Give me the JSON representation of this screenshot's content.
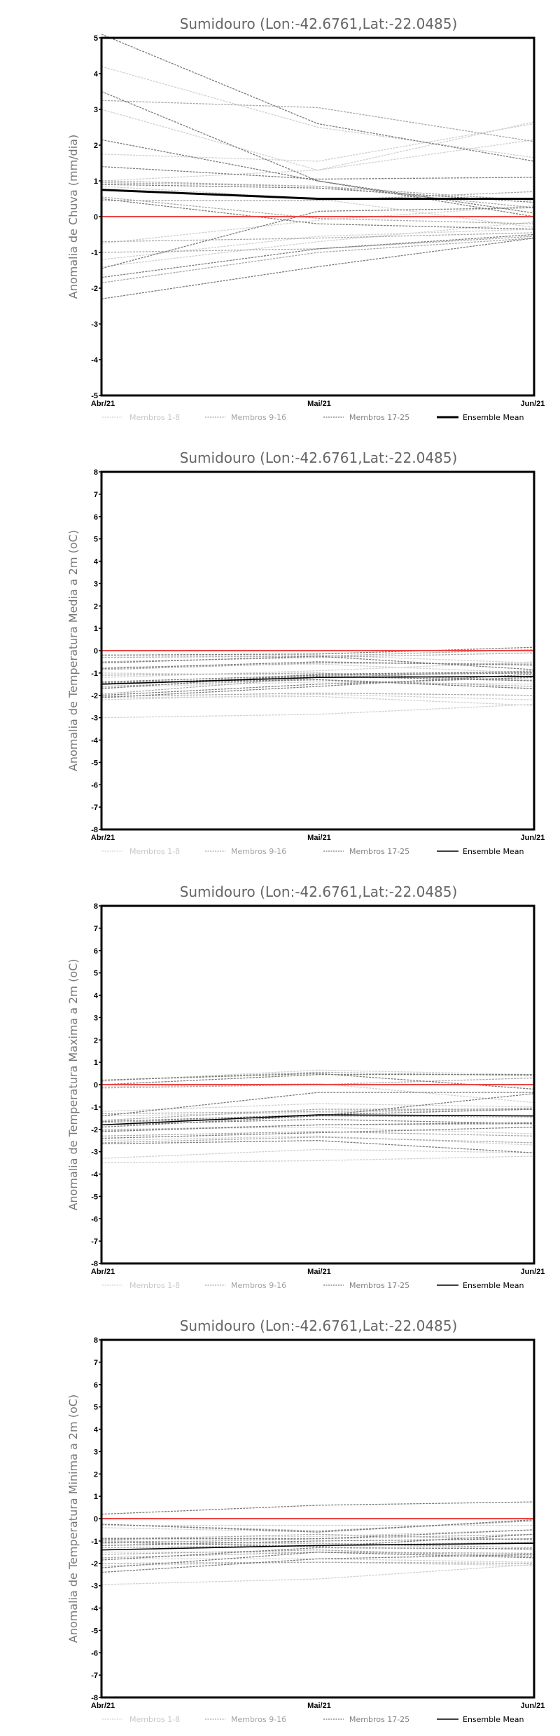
{
  "colors": {
    "members_1_8": "#cfcfcf",
    "members_9_16": "#a8a8a8",
    "members_17_25": "#7a7a7a",
    "mean": "#000000",
    "zero_line": "#ee4444"
  },
  "legend": [
    "Membros 1-8",
    "Membros 9-16",
    "Membros 17-25",
    "Ensemble Mean"
  ],
  "chart_data": [
    {
      "type": "line",
      "title": "Sumidouro (Lon:-42.6761,Lat:-22.0485)",
      "ylabel": "Anomalia de Chuva (mm/dia)",
      "xlabel": "",
      "categories": [
        "Abr/21",
        "Mai/21",
        "Jun/21"
      ],
      "ylim": [
        -5,
        5
      ],
      "yticks": [
        "-5",
        "-4",
        "-3",
        "-2",
        "-1",
        "0",
        "1",
        "2",
        "3",
        "4",
        "5"
      ],
      "reference_line": 0,
      "members": [
        [
          4.2,
          2.5,
          1.65
        ],
        [
          3.0,
          1.3,
          2.65
        ],
        [
          1.75,
          1.55,
          2.6
        ],
        [
          1.0,
          1.3,
          2.15
        ],
        [
          0.85,
          0.5,
          -0.3
        ],
        [
          -0.75,
          -0.1,
          0.3
        ],
        [
          -1.2,
          -0.55,
          -0.35
        ],
        [
          -1.4,
          -0.7,
          -0.15
        ],
        [
          3.25,
          3.05,
          2.1
        ],
        [
          0.95,
          0.85,
          0.25
        ],
        [
          0.45,
          0.45,
          0.7
        ],
        [
          -0.7,
          -0.6,
          -0.45
        ],
        [
          -1.0,
          -0.9,
          -0.55
        ],
        [
          0.55,
          -0.05,
          -0.2
        ],
        [
          1.0,
          0.85,
          0.45
        ],
        [
          -1.85,
          -1.0,
          -0.6
        ],
        [
          5.1,
          2.6,
          1.55
        ],
        [
          3.5,
          1.0,
          0.0
        ],
        [
          2.15,
          1.0,
          0.1
        ],
        [
          1.4,
          1.05,
          1.1
        ],
        [
          0.9,
          0.8,
          0.4
        ],
        [
          0.5,
          -0.2,
          -0.35
        ],
        [
          -1.45,
          0.15,
          0.25
        ],
        [
          -1.7,
          -0.9,
          -0.5
        ],
        [
          -2.3,
          -1.4,
          -0.6
        ]
      ],
      "ensemble_mean": [
        0.75,
        0.5,
        0.5
      ]
    },
    {
      "type": "line",
      "title": "Sumidouro (Lon:-42.6761,Lat:-22.0485)",
      "ylabel": "Anomalia de Temperatura Media a 2m (oC)",
      "xlabel": "",
      "categories": [
        "Abr/21",
        "Mai/21",
        "Jun/21"
      ],
      "ylim": [
        -8,
        8
      ],
      "yticks": [
        "-8",
        "-7",
        "-6",
        "-5",
        "-4",
        "-3",
        "-2",
        "-1",
        "0",
        "1",
        "2",
        "3",
        "4",
        "5",
        "6",
        "7",
        "8"
      ],
      "reference_line": 0,
      "members": [
        [
          -3.0,
          -2.85,
          -2.4
        ],
        [
          -2.2,
          -1.95,
          -2.2
        ],
        [
          -1.2,
          -0.9,
          -0.5
        ],
        [
          -0.75,
          -0.6,
          -1.0
        ],
        [
          -2.1,
          -2.05,
          -2.45
        ],
        [
          -1.0,
          -1.1,
          -1.3
        ],
        [
          -1.65,
          -1.4,
          -1.5
        ],
        [
          -0.2,
          -0.2,
          -0.55
        ],
        [
          -1.4,
          -1.3,
          -1.6
        ],
        [
          -0.5,
          -0.3,
          -0.1
        ],
        [
          -2.05,
          -1.9,
          -2.0
        ],
        [
          -1.1,
          -1.0,
          -1.35
        ],
        [
          -0.85,
          -0.55,
          -0.6
        ],
        [
          -1.6,
          -1.3,
          -1.7
        ],
        [
          -1.95,
          -1.2,
          -0.9
        ],
        [
          -0.3,
          -0.25,
          0.05
        ],
        [
          -0.2,
          -0.15,
          0.15
        ],
        [
          -0.55,
          -0.25,
          -0.85
        ],
        [
          -0.8,
          -0.5,
          -0.65
        ],
        [
          -1.4,
          -1.1,
          -1.0
        ],
        [
          -1.5,
          -1.15,
          -1.35
        ],
        [
          -2.0,
          -1.5,
          -1.2
        ],
        [
          -2.1,
          -1.6,
          -1.05
        ],
        [
          -1.45,
          -1.3,
          -1.7
        ],
        [
          -1.7,
          -1.05,
          -0.95
        ]
      ],
      "ensemble_mean": [
        -1.5,
        -1.2,
        -1.15
      ]
    },
    {
      "type": "line",
      "title": "Sumidouro (Lon:-42.6761,Lat:-22.0485)",
      "ylabel": "Anomalia de Temperatura Maxima a 2m (oC)",
      "xlabel": "",
      "categories": [
        "Abr/21",
        "Mai/21",
        "Jun/21"
      ],
      "ylim": [
        -8,
        8
      ],
      "yticks": [
        "-8",
        "-7",
        "-6",
        "-5",
        "-4",
        "-3",
        "-2",
        "-1",
        "0",
        "1",
        "2",
        "3",
        "4",
        "5",
        "6",
        "7",
        "8"
      ],
      "reference_line": 0,
      "members": [
        [
          -3.5,
          -3.4,
          -3.2
        ],
        [
          -3.3,
          -2.9,
          -3.05
        ],
        [
          -1.2,
          -0.85,
          -1.0
        ],
        [
          0.15,
          0.65,
          0.45
        ],
        [
          -2.0,
          -1.9,
          -2.2
        ],
        [
          -1.4,
          -1.25,
          -1.1
        ],
        [
          -2.5,
          -2.3,
          -2.7
        ],
        [
          -0.1,
          0.05,
          -0.8
        ],
        [
          0.2,
          0.55,
          0.4
        ],
        [
          -1.6,
          -1.1,
          -1.1
        ],
        [
          -2.3,
          -2.1,
          -2.3
        ],
        [
          -1.7,
          -1.4,
          -1.45
        ],
        [
          -2.6,
          -2.35,
          -2.6
        ],
        [
          -1.3,
          -1.2,
          -1.05
        ],
        [
          -0.15,
          0.0,
          0.3
        ],
        [
          -2.05,
          -1.8,
          -1.75
        ],
        [
          0.2,
          0.5,
          -0.2
        ],
        [
          0.0,
          0.45,
          0.45
        ],
        [
          -1.4,
          -0.35,
          -0.35
        ],
        [
          -1.65,
          -1.35,
          -1.1
        ],
        [
          -1.9,
          -1.4,
          -0.4
        ],
        [
          -2.65,
          -2.5,
          -3.05
        ],
        [
          -2.4,
          -2.15,
          -1.9
        ],
        [
          -2.1,
          -1.8,
          -1.7
        ],
        [
          -1.8,
          -1.55,
          -1.75
        ]
      ],
      "ensemble_mean": [
        -1.8,
        -1.35,
        -1.4
      ]
    },
    {
      "type": "line",
      "title": "Sumidouro (Lon:-42.6761,Lat:-22.0485)",
      "ylabel": "Anomalia de Temperatura Minima a 2m (oC)",
      "xlabel": "",
      "categories": [
        "Abr/21",
        "Mai/21",
        "Jun/21"
      ],
      "ylim": [
        -8,
        8
      ],
      "yticks": [
        "-8",
        "-7",
        "-6",
        "-5",
        "-4",
        "-3",
        "-2",
        "-1",
        "0",
        "1",
        "2",
        "3",
        "4",
        "5",
        "6",
        "7",
        "8"
      ],
      "reference_line": 0,
      "members": [
        [
          -2.95,
          -2.7,
          -2.05
        ],
        [
          -2.1,
          -1.95,
          -2.1
        ],
        [
          -0.4,
          -0.6,
          -0.1
        ],
        [
          -0.85,
          -0.8,
          -0.5
        ],
        [
          -1.8,
          -1.8,
          -1.95
        ],
        [
          -1.2,
          -1.1,
          -1.4
        ],
        [
          -1.5,
          -1.5,
          -1.65
        ],
        [
          -0.3,
          -0.3,
          -0.3
        ],
        [
          -1.0,
          -1.1,
          -1.3
        ],
        [
          -1.6,
          -1.4,
          -1.7
        ],
        [
          -2.0,
          -1.95,
          -2.0
        ],
        [
          -1.1,
          -0.9,
          -0.7
        ],
        [
          -0.25,
          -0.55,
          -0.1
        ],
        [
          -1.3,
          -1.2,
          -1.05
        ],
        [
          -1.75,
          -1.5,
          -1.55
        ],
        [
          -0.95,
          -0.7,
          -0.95
        ],
        [
          0.2,
          0.6,
          0.75
        ],
        [
          -0.25,
          -0.6,
          -0.05
        ],
        [
          -0.9,
          -0.9,
          -0.5
        ],
        [
          -1.2,
          -1.0,
          -0.9
        ],
        [
          -1.4,
          -1.2,
          -1.1
        ],
        [
          -1.85,
          -1.3,
          -1.35
        ],
        [
          -2.2,
          -1.5,
          -1.75
        ],
        [
          -2.4,
          -1.8,
          -1.6
        ],
        [
          -1.05,
          -1.25,
          -0.7
        ]
      ],
      "ensemble_mean": [
        -1.4,
        -1.2,
        -1.1
      ]
    }
  ]
}
